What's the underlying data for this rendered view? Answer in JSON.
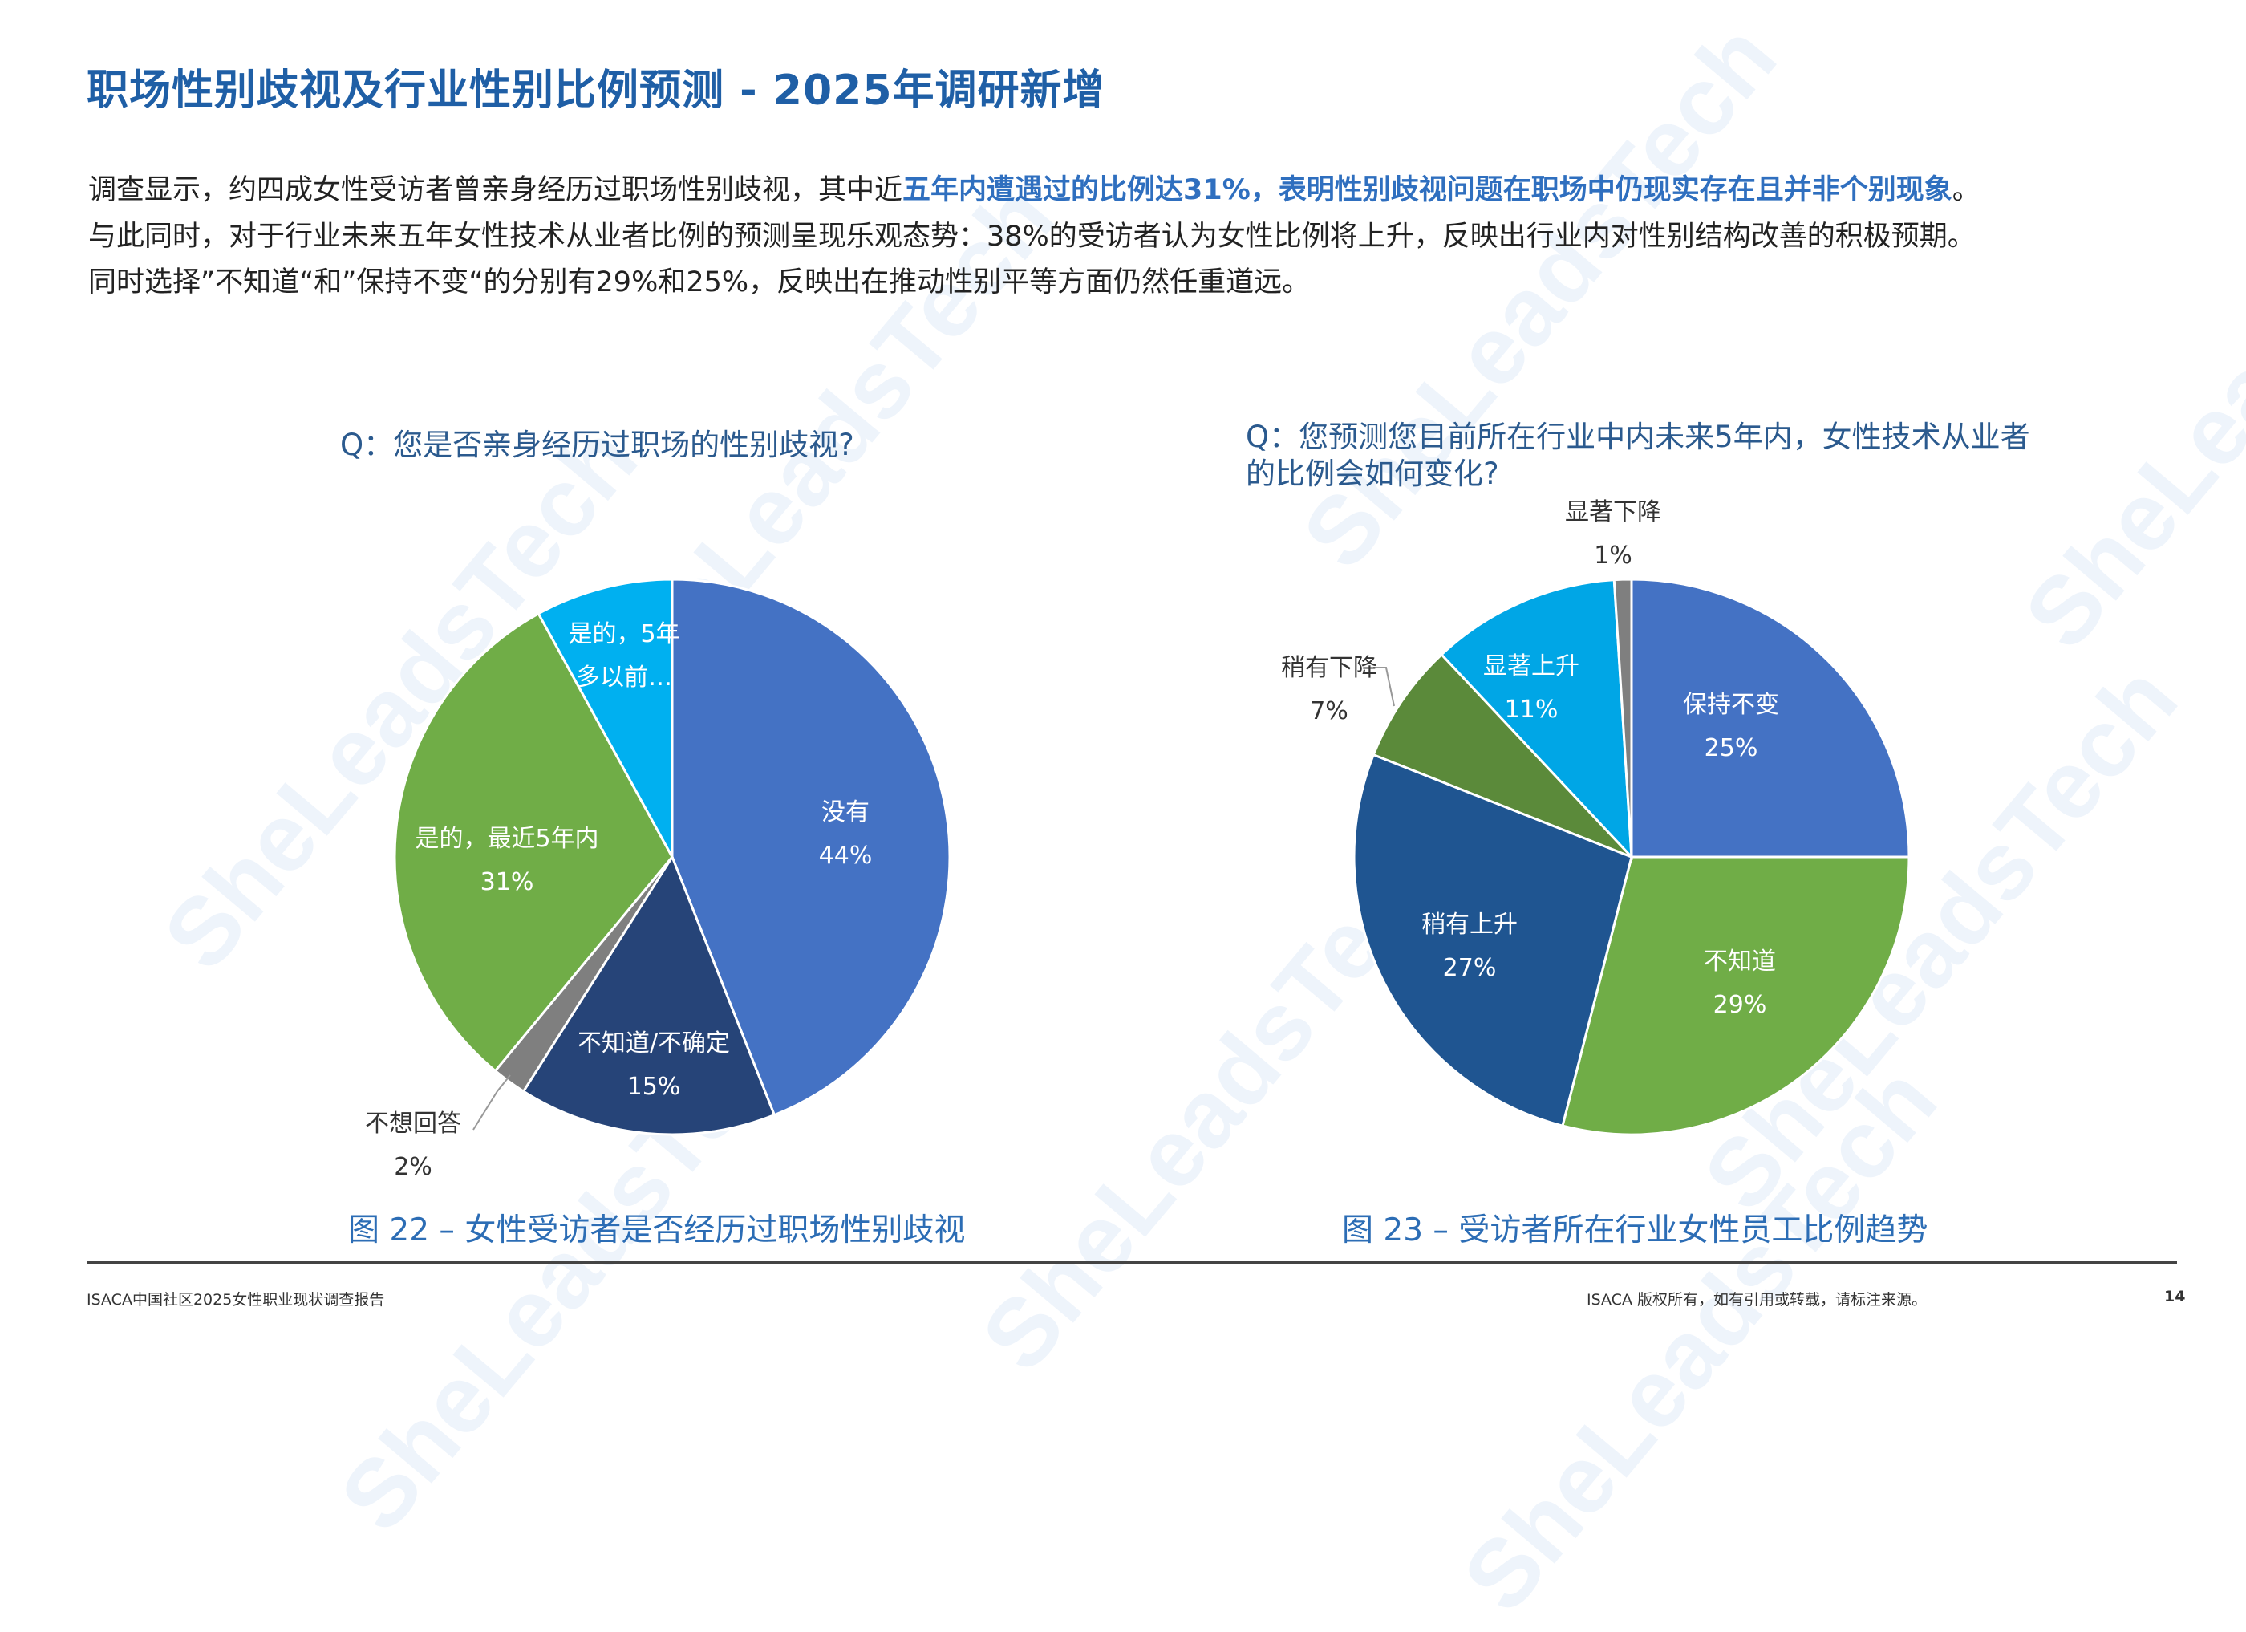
{
  "header": {
    "title": "职场性别歧视及行业性别比例预测 - 2025年调研新增"
  },
  "intro": {
    "line1_a": "调查显示，约四成女性受访者曾亲身经历过职场性别歧视，其中近",
    "line1_b": "五年内遭遇过的比例达31%，表明性别歧视问题在职场中仍现实存在且并非个别现象",
    "line1_c": "。",
    "line2": "与此同时，对于行业未来五年女性技术从业者比例的预测呈现乐观态势：38%的受访者认为女性比例将上升，反映出行业内对性别结构改善的积极预期。",
    "line3": "同时选择”不知道“和”保持不变“的分别有29%和25%，反映出在推动性别平等方面仍然任重道远。"
  },
  "watermark": "SheLeadsTech",
  "chart_data": [
    {
      "type": "pie",
      "question": "Q：您是否亲身经历过职场的性别歧视?",
      "caption": "图 22 – 女性受访者是否经历过职场性别歧视",
      "slices": [
        {
          "label": "没有",
          "value": 44,
          "display": "44%",
          "color": "#4472C4"
        },
        {
          "label": "不知道/不确定",
          "value": 15,
          "display": "15%",
          "color": "#264478"
        },
        {
          "label": "不想回答",
          "value": 2,
          "display": "2%",
          "color": "#7F7F7F"
        },
        {
          "label": "是的，最近5年内",
          "value": 31,
          "display": "31%",
          "color": "#70AD47"
        },
        {
          "label": "是的，5年多以前…",
          "value": 8,
          "display": "",
          "color": "#00B0F0"
        }
      ]
    },
    {
      "type": "pie",
      "question_line1": "Q：您预测您目前所在行业中内未来5年内，女性技术从业者",
      "question_line2": "的比例会如何变化?",
      "caption": "图 23 – 受访者所在行业女性员工比例趋势",
      "slices": [
        {
          "label": "保持不变",
          "value": 25,
          "display": "25%",
          "color": "#4472C4"
        },
        {
          "label": "不知道",
          "value": 29,
          "display": "29%",
          "color": "#70AD47"
        },
        {
          "label": "稍有上升",
          "value": 27,
          "display": "27%",
          "color": "#1F5591"
        },
        {
          "label": "稍有下降",
          "value": 7,
          "display": "7%",
          "color": "#5B8A3A"
        },
        {
          "label": "显著上升",
          "value": 11,
          "display": "11%",
          "color": "#00A6E6"
        },
        {
          "label": "显著下降",
          "value": 1,
          "display": "1%",
          "color": "#7F7F7F"
        }
      ]
    }
  ],
  "footer": {
    "left": "ISACA中国社区2025女性职业现状调查报告",
    "right": "ISACA 版权所有，如有引用或转载，请标注来源。",
    "page": "14"
  }
}
